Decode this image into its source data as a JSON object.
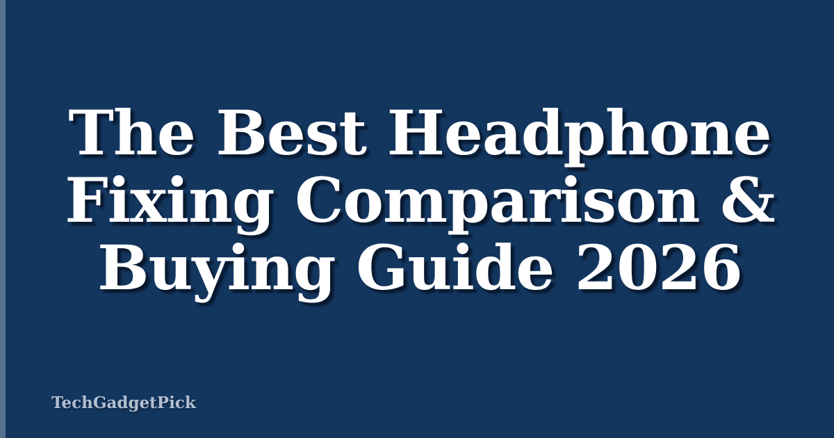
{
  "colors": {
    "background": "#13365f",
    "stripe": "#56708f",
    "title_color": "#ffffff",
    "brand_color": "#b3c0d2",
    "shadow_color": "rgba(7, 19, 36, 0.85)"
  },
  "title": {
    "lines": [
      "The Best Headphone",
      "Fixing Comparison &",
      "Buying Guide 2026"
    ]
  },
  "brand": {
    "label": "TechGadgetPick"
  }
}
